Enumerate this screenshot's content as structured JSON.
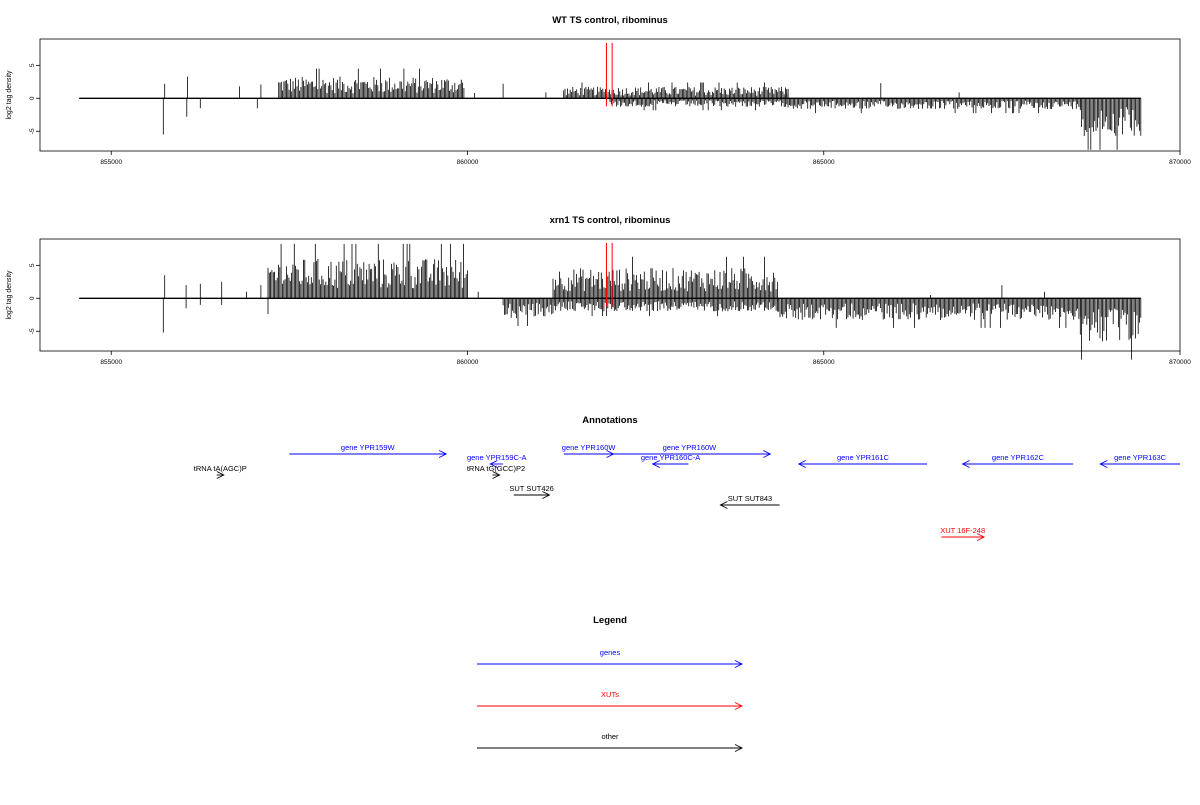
{
  "colors": {
    "gene": "#0000ff",
    "xut": "#ff0000",
    "other": "#000000",
    "marker": "#ff0000",
    "axis": "#000000"
  },
  "chart_data": [
    {
      "type": "bar",
      "title": "WT TS control, ribominus",
      "ylabel": "log2 tag density",
      "xlim": [
        854000,
        870000
      ],
      "ylim": [
        -8,
        9
      ],
      "xticks": [
        855000,
        860000,
        865000,
        870000
      ],
      "xtick_labels": [
        "855000",
        "860000",
        "865000",
        "870000"
      ],
      "yticks": [
        -5,
        0,
        5
      ],
      "ytick_labels": [
        "-5",
        "0",
        "5"
      ],
      "baseline_range": [
        854550,
        869450
      ],
      "markers": [
        861950,
        862030
      ],
      "series": [
        {
          "name": "plus",
          "segments": [
            {
              "x": [
                855750,
                855760
              ],
              "values": [
                2.2
              ]
            },
            {
              "x": [
                856070,
                856080
              ],
              "values": [
                3.3
              ]
            },
            {
              "x": [
                856800,
                856810
              ],
              "values": [
                1.8
              ]
            },
            {
              "x": [
                857100,
                857110
              ],
              "values": [
                2.1
              ]
            },
            {
              "x": [
                857350,
                859950
              ],
              "values": [
                3.0
              ]
            },
            {
              "x": [
                860100,
                860110
              ],
              "values": [
                0.8
              ]
            },
            {
              "x": [
                860500,
                860510
              ],
              "values": [
                2.2
              ]
            },
            {
              "x": [
                861100,
                861110
              ],
              "values": [
                0.9
              ]
            },
            {
              "x": [
                861350,
                864500
              ],
              "values": [
                1.6
              ]
            },
            {
              "x": [
                864480,
                864490
              ],
              "values": [
                1.4
              ]
            },
            {
              "x": [
                865800,
                865810
              ],
              "values": [
                2.3
              ]
            },
            {
              "x": [
                866900,
                866910
              ],
              "values": [
                0.9
              ]
            }
          ]
        },
        {
          "name": "minus",
          "segments": [
            {
              "x": [
                855730,
                855770
              ],
              "values": [
                -5.5
              ]
            },
            {
              "x": [
                856060,
                856080
              ],
              "values": [
                -2.8
              ]
            },
            {
              "x": [
                856250,
                856260
              ],
              "values": [
                -1.5
              ]
            },
            {
              "x": [
                857050,
                857060
              ],
              "values": [
                -1.5
              ]
            },
            {
              "x": [
                862000,
                864500
              ],
              "values": [
                -1.2
              ]
            },
            {
              "x": [
                864500,
                868600
              ],
              "values": [
                -1.5
              ]
            },
            {
              "x": [
                868600,
                869450
              ],
              "values": [
                -5.2
              ]
            }
          ]
        }
      ]
    },
    {
      "type": "bar",
      "title": "xrn1 TS control, ribominus",
      "ylabel": "log2 tag density",
      "xlim": [
        854000,
        870000
      ],
      "ylim": [
        -8,
        9
      ],
      "xticks": [
        855000,
        860000,
        865000,
        870000
      ],
      "xtick_labels": [
        "855000",
        "860000",
        "865000",
        "870000"
      ],
      "yticks": [
        -5,
        0,
        5
      ],
      "ytick_labels": [
        "-5",
        "0",
        "5"
      ],
      "baseline_range": [
        854550,
        869450
      ],
      "markers": [
        861950,
        862030
      ],
      "series": [
        {
          "name": "plus",
          "segments": [
            {
              "x": [
                855750,
                855760
              ],
              "values": [
                3.5
              ]
            },
            {
              "x": [
                856050,
                856060
              ],
              "values": [
                2.0
              ]
            },
            {
              "x": [
                856250,
                856260
              ],
              "values": [
                2.2
              ]
            },
            {
              "x": [
                856550,
                856560
              ],
              "values": [
                2.5
              ]
            },
            {
              "x": [
                856900,
                856910
              ],
              "values": [
                1.0
              ]
            },
            {
              "x": [
                857100,
                857110
              ],
              "values": [
                2.0
              ]
            },
            {
              "x": [
                857200,
                860000
              ],
              "values": [
                5.5
              ]
            },
            {
              "x": [
                860150,
                860160
              ],
              "values": [
                1.0
              ]
            },
            {
              "x": [
                861200,
                864350
              ],
              "values": [
                4.2
              ]
            },
            {
              "x": [
                866500,
                866510
              ],
              "values": [
                0.5
              ]
            },
            {
              "x": [
                867500,
                867510
              ],
              "values": [
                2.0
              ]
            },
            {
              "x": [
                868100,
                868110
              ],
              "values": [
                1.0
              ]
            }
          ]
        },
        {
          "name": "minus",
          "segments": [
            {
              "x": [
                855730,
                855770
              ],
              "values": [
                -5.2
              ]
            },
            {
              "x": [
                856050,
                856060
              ],
              "values": [
                -1.5
              ]
            },
            {
              "x": [
                856250,
                856260
              ],
              "values": [
                -1.0
              ]
            },
            {
              "x": [
                856550,
                856560
              ],
              "values": [
                -1.0
              ]
            },
            {
              "x": [
                857200,
                857210
              ],
              "values": [
                -2.4
              ]
            },
            {
              "x": [
                860500,
                861200
              ],
              "values": [
                -2.8
              ]
            },
            {
              "x": [
                861200,
                864350
              ],
              "values": [
                -1.8
              ]
            },
            {
              "x": [
                864350,
                868600
              ],
              "values": [
                -3.0
              ]
            },
            {
              "x": [
                868600,
                869450
              ],
              "values": [
                -6.2
              ]
            }
          ]
        }
      ]
    }
  ],
  "annotations": {
    "title": "Annotations",
    "features": [
      {
        "label": "gene YPR159W",
        "kind": "gene",
        "strand": "+",
        "start": 857500,
        "end": 859700,
        "row": 0
      },
      {
        "label": "gene YPR159C-A",
        "kind": "gene",
        "strand": "-",
        "start": 860320,
        "end": 860500,
        "row": 1
      },
      {
        "label": "gene YPR160W",
        "kind": "gene",
        "strand": "+",
        "start": 861350,
        "end": 862050,
        "row": 0
      },
      {
        "label": "gene YPR160W",
        "kind": "gene",
        "strand": "+",
        "start": 861980,
        "end": 864250,
        "row": 0
      },
      {
        "label": "gene YPR160C-A",
        "kind": "gene",
        "strand": "-",
        "start": 862600,
        "end": 863100,
        "row": 1
      },
      {
        "label": "gene YPR161C",
        "kind": "gene",
        "strand": "-",
        "start": 864650,
        "end": 866450,
        "row": 1
      },
      {
        "label": "gene YPR162C",
        "kind": "gene",
        "strand": "-",
        "start": 866950,
        "end": 868500,
        "row": 1
      },
      {
        "label": "gene YPR163C",
        "kind": "gene",
        "strand": "-",
        "start": 868880,
        "end": 870000,
        "row": 1
      },
      {
        "label": "tRNA tA(AGC)P",
        "kind": "other",
        "strand": "+",
        "start": 856480,
        "end": 856580,
        "row": 2
      },
      {
        "label": "tRNA tG(GCC)P2",
        "kind": "other",
        "strand": "+",
        "start": 860350,
        "end": 860450,
        "row": 2
      },
      {
        "label": "SUT SUT426",
        "kind": "other",
        "strand": "+",
        "start": 860650,
        "end": 861150,
        "row": 3
      },
      {
        "label": "SUT SUT843",
        "kind": "other",
        "strand": "-",
        "start": 863550,
        "end": 864380,
        "row": 4
      },
      {
        "label": "XUT 16F-248",
        "kind": "xut",
        "strand": "+",
        "start": 866650,
        "end": 867250,
        "row": 5
      }
    ]
  },
  "legend": {
    "title": "Legend",
    "items": [
      {
        "label": "genes",
        "kind": "gene"
      },
      {
        "label": "XUTs",
        "kind": "xut"
      },
      {
        "label": "other",
        "kind": "other"
      }
    ]
  }
}
